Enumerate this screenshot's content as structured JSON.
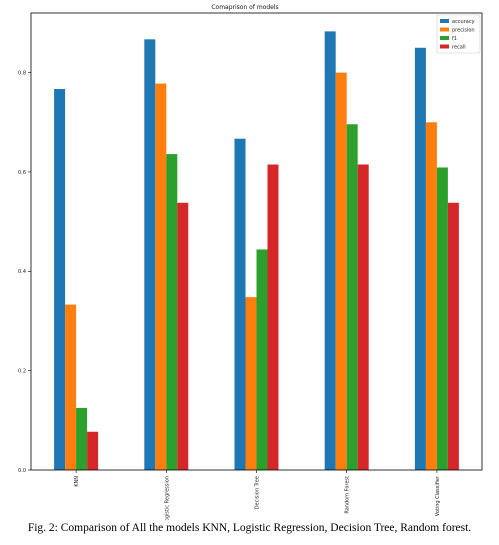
{
  "caption": "Fig. 2: Comparison of All the models KNN, Logistic Regression, Decision Tree, Random forest.",
  "chart_data": {
    "type": "bar",
    "title": "Comaprison of models",
    "xlabel": "",
    "ylabel": "",
    "categories": [
      "KNN",
      "Logistic Regression",
      "Decision Tree",
      "Random Forest",
      "Voting Classifier"
    ],
    "series": [
      {
        "name": "accuracy",
        "color": "#1f77b4",
        "values": [
          0.767,
          0.867,
          0.667,
          0.883,
          0.85
        ]
      },
      {
        "name": "precision",
        "color": "#ff7f0e",
        "values": [
          0.333,
          0.778,
          0.348,
          0.8,
          0.7
        ]
      },
      {
        "name": "f1",
        "color": "#2ca02c",
        "values": [
          0.125,
          0.636,
          0.444,
          0.696,
          0.609
        ]
      },
      {
        "name": "recall",
        "color": "#d62728",
        "values": [
          0.077,
          0.538,
          0.615,
          0.615,
          0.538
        ]
      }
    ],
    "ylim": [
      0,
      0.92
    ],
    "yticks": [
      "0.0",
      "0.2",
      "0.4",
      "0.6",
      "0.8"
    ],
    "legend_position": "top-right",
    "grid": false
  }
}
